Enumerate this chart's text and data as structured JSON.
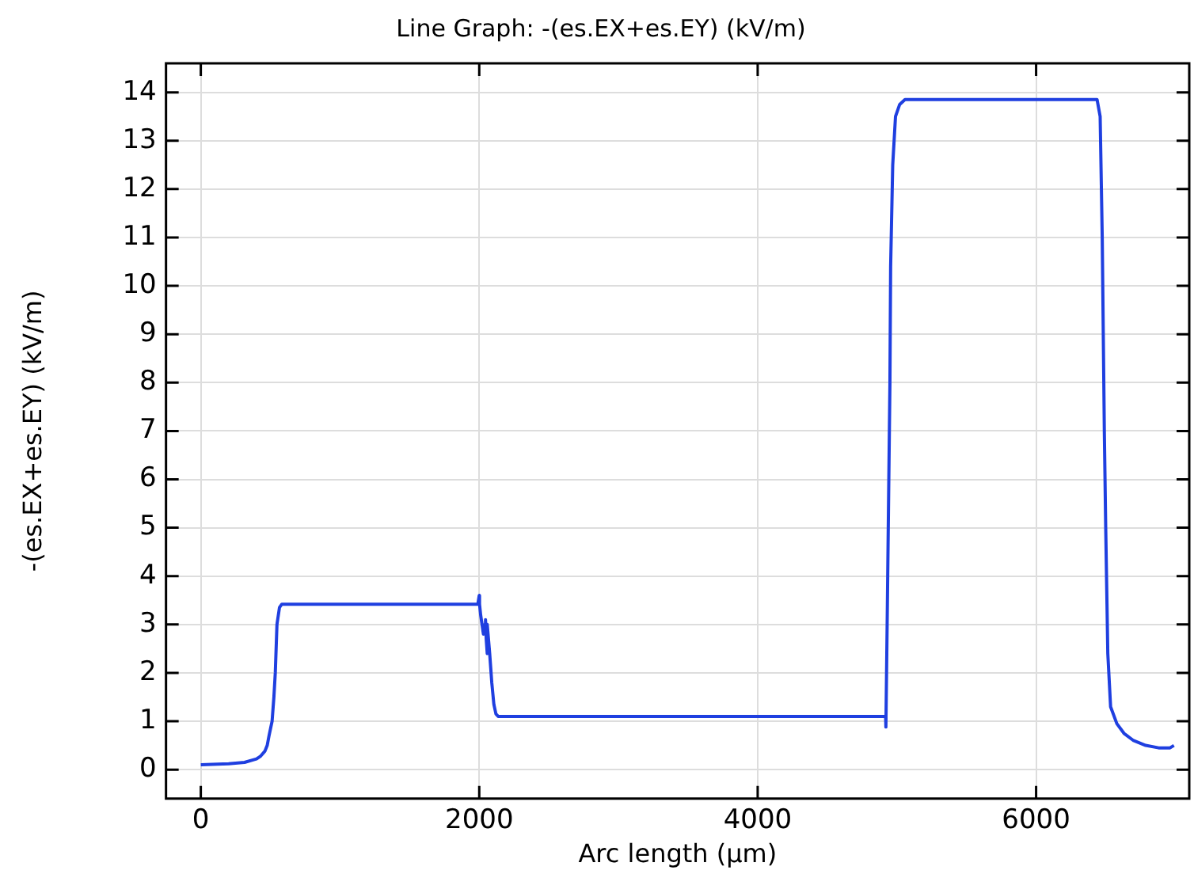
{
  "chart_data": {
    "type": "line",
    "title": "Line Graph: -(es.EX+es.EY) (kV/m)",
    "xlabel": "Arc length (µm)",
    "ylabel": "-(es.EX+es.EY) (kV/m)",
    "xlim": [
      -250,
      7100
    ],
    "ylim": [
      -0.6,
      14.6
    ],
    "xticks": [
      0,
      2000,
      4000,
      6000
    ],
    "yticks": [
      0,
      1,
      2,
      3,
      4,
      5,
      6,
      7,
      8,
      9,
      10,
      11,
      12,
      13,
      14
    ],
    "grid": true,
    "legend": false,
    "marker": "none",
    "line_style": "solid",
    "series": [
      {
        "color": "#1f3fe0",
        "x": [
          0,
          200,
          314,
          400,
          430,
          460,
          477,
          490,
          512,
          525,
          535,
          547,
          565,
          582,
          800,
          1200,
          1600,
          1990,
          2000,
          2002,
          2010,
          2030,
          2040,
          2045,
          2050,
          2055,
          2060,
          2075,
          2090,
          2105,
          2120,
          2136,
          2500,
          3000,
          3500,
          4000,
          4500,
          4919,
          4921,
          4930,
          4950,
          4955,
          4960,
          4970,
          4990,
          5020,
          5058,
          5500,
          6000,
          6438,
          6460,
          6475,
          6490,
          6500,
          6515,
          6535,
          6580,
          6631,
          6700,
          6787,
          6880,
          6962,
          6990
        ],
        "values": [
          0.1,
          0.12,
          0.15,
          0.22,
          0.28,
          0.38,
          0.5,
          0.7,
          1.0,
          1.5,
          2.0,
          3.0,
          3.35,
          3.42,
          3.42,
          3.42,
          3.42,
          3.42,
          3.6,
          3.42,
          3.2,
          2.8,
          3.0,
          3.1,
          2.7,
          2.4,
          3.0,
          2.4,
          1.8,
          1.35,
          1.15,
          1.1,
          1.1,
          1.1,
          1.1,
          1.1,
          1.1,
          1.1,
          0.88,
          3.0,
          8.0,
          10.4,
          10.4,
          12.5,
          13.5,
          13.75,
          13.85,
          13.85,
          13.85,
          13.85,
          13.5,
          11.0,
          7.0,
          5.0,
          2.4,
          1.3,
          0.95,
          0.75,
          0.6,
          0.5,
          0.45,
          0.45,
          0.5
        ]
      }
    ]
  }
}
